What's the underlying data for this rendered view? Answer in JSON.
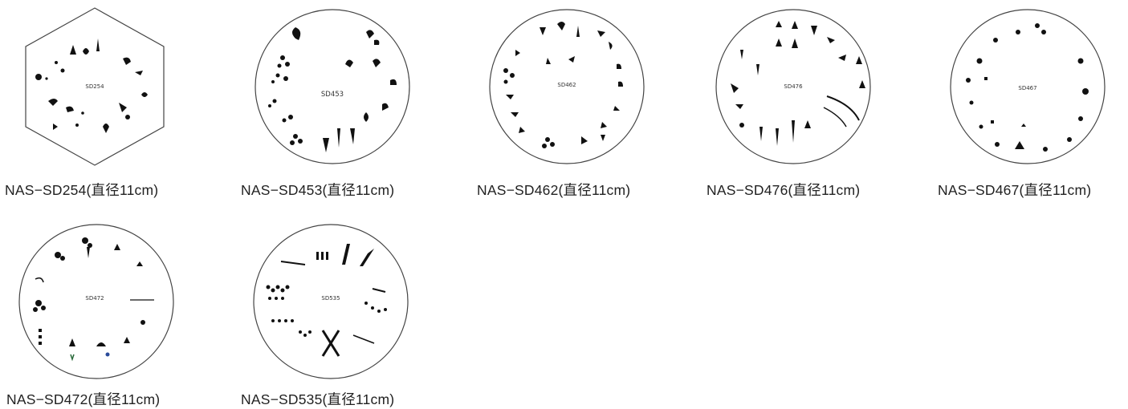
{
  "plates": [
    {
      "code": "SD254",
      "caption": "NAS−SD254(直径11cm)",
      "shape": "hexagon",
      "label_on_plate": "SD254"
    },
    {
      "code": "SD453",
      "caption": "NAS−SD453(直径11cm)",
      "shape": "circle",
      "label_on_plate": "SD453"
    },
    {
      "code": "SD462",
      "caption": "NAS−SD462(直径11cm)",
      "shape": "circle",
      "label_on_plate": "SD462"
    },
    {
      "code": "SD476",
      "caption": "NAS−SD476(直径11cm)",
      "shape": "circle",
      "label_on_plate": "SD476"
    },
    {
      "code": "SD467",
      "caption": "NAS−SD467(直径11cm)",
      "shape": "circle",
      "label_on_plate": "SD467"
    },
    {
      "code": "SD472",
      "caption": "NAS−SD472(直径11cm)",
      "shape": "circle",
      "label_on_plate": "SD472"
    },
    {
      "code": "SD535",
      "caption": "NAS−SD535(直径11cm)",
      "shape": "circle",
      "label_on_plate": "SD535"
    }
  ]
}
